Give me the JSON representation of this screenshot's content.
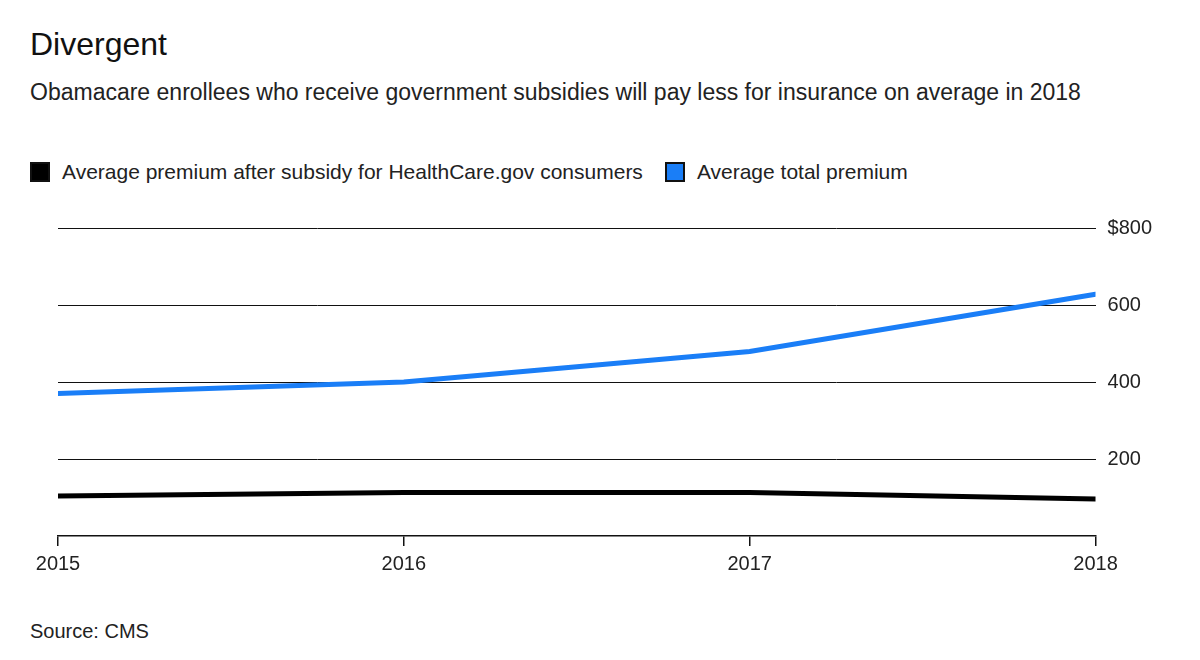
{
  "chart_data": {
    "type": "line",
    "title": "Divergent",
    "subtitle": "Obamacare enrollees who receive government subsidies will pay less for insurance on average in 2018",
    "source": "Source: CMS",
    "categories": [
      "2015",
      "2016",
      "2017",
      "2018"
    ],
    "series": [
      {
        "name": "Average premium after subsidy for HealthCare.gov consumers",
        "color": "#000000",
        "values": [
          104,
          113,
          113,
          96
        ]
      },
      {
        "name": "Average total premium",
        "color": "#1a7ef7",
        "values": [
          370,
          400,
          479,
          628
        ]
      }
    ],
    "ylim": [
      0,
      800
    ],
    "yticks": [
      200,
      400,
      600,
      {
        "value": 800,
        "label": "$800"
      }
    ],
    "grid": true,
    "legend": "top-left"
  }
}
